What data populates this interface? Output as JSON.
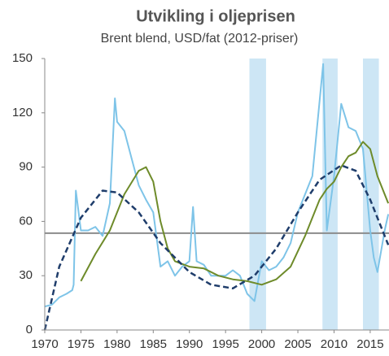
{
  "chart_data": {
    "type": "line",
    "title": "Utvikling i oljeprisen",
    "subtitle": "Brent blend, USD/fat (2012-priser)",
    "xlim": [
      1970,
      2017.6
    ],
    "xticks": [
      1970,
      1975,
      1980,
      1985,
      1990,
      1995,
      2000,
      2005,
      2010,
      2015
    ],
    "ylim": [
      0,
      150
    ],
    "yticks": [
      0,
      30,
      60,
      90,
      120,
      150
    ],
    "shaded_periods": [
      [
        1998.3,
        2000.6
      ],
      [
        2008.4,
        2010.5
      ],
      [
        2014,
        2016.2
      ]
    ],
    "shade_color": "#cde6f5",
    "reference_line": {
      "value": 53.5,
      "color": "#8c8c8c"
    },
    "series": [
      {
        "color": "#7ec4e8",
        "dash": false,
        "x": [
          1970,
          1971,
          1972,
          1973,
          1973.8,
          1974,
          1974.3,
          1975,
          1976,
          1977,
          1978,
          1979,
          1979.7,
          1980,
          1981,
          1982,
          1983,
          1984,
          1985,
          1986,
          1987,
          1988,
          1989,
          1990,
          1990.5,
          1991,
          1992,
          1993,
          1994,
          1995,
          1996,
          1997,
          1998,
          1999,
          2000,
          2001,
          2002,
          2003,
          2004,
          2005,
          2006,
          2007,
          2008.5,
          2009,
          2010,
          2011,
          2012,
          2013,
          2014,
          2015,
          2015.5,
          2016,
          2017,
          2017.5
        ],
        "values": [
          13,
          14,
          18,
          20,
          22,
          25,
          77,
          55,
          55,
          57,
          52,
          70,
          128,
          115,
          110,
          95,
          80,
          72,
          65,
          35,
          38,
          30,
          35,
          38,
          68,
          38,
          36,
          30,
          30,
          30,
          33,
          30,
          20,
          16,
          38,
          33,
          35,
          40,
          48,
          65,
          75,
          85,
          147,
          55,
          85,
          125,
          112,
          110,
          100,
          55,
          40,
          32,
          55,
          64
        ]
      },
      {
        "color": "#6e8b2a",
        "dash": false,
        "x": [
          1975,
          1977,
          1979,
          1981,
          1983,
          1984,
          1985,
          1986,
          1987,
          1988,
          1990,
          1992,
          1994,
          1996,
          1998,
          2000,
          2002,
          2004,
          2006,
          2008,
          2009,
          2010,
          2011,
          2012,
          2013,
          2014,
          2015,
          2016,
          2017.5
        ],
        "values": [
          27,
          42,
          55,
          75,
          88,
          90,
          82,
          60,
          45,
          38,
          35,
          34,
          30,
          28,
          27,
          25,
          28,
          35,
          52,
          72,
          78,
          82,
          90,
          96,
          98,
          104,
          100,
          85,
          70
        ]
      },
      {
        "color": "#1f3d6b",
        "dash": true,
        "x": [
          1970,
          1972,
          1975,
          1978,
          1980,
          1983,
          1986,
          1990,
          1993,
          1996,
          1999,
          2002,
          2005,
          2008,
          2011,
          2013,
          2015,
          2017.5
        ],
        "values": [
          0,
          35,
          62,
          77,
          76,
          65,
          48,
          32,
          25,
          23,
          30,
          45,
          65,
          83,
          91,
          88,
          72,
          47
        ]
      }
    ]
  }
}
